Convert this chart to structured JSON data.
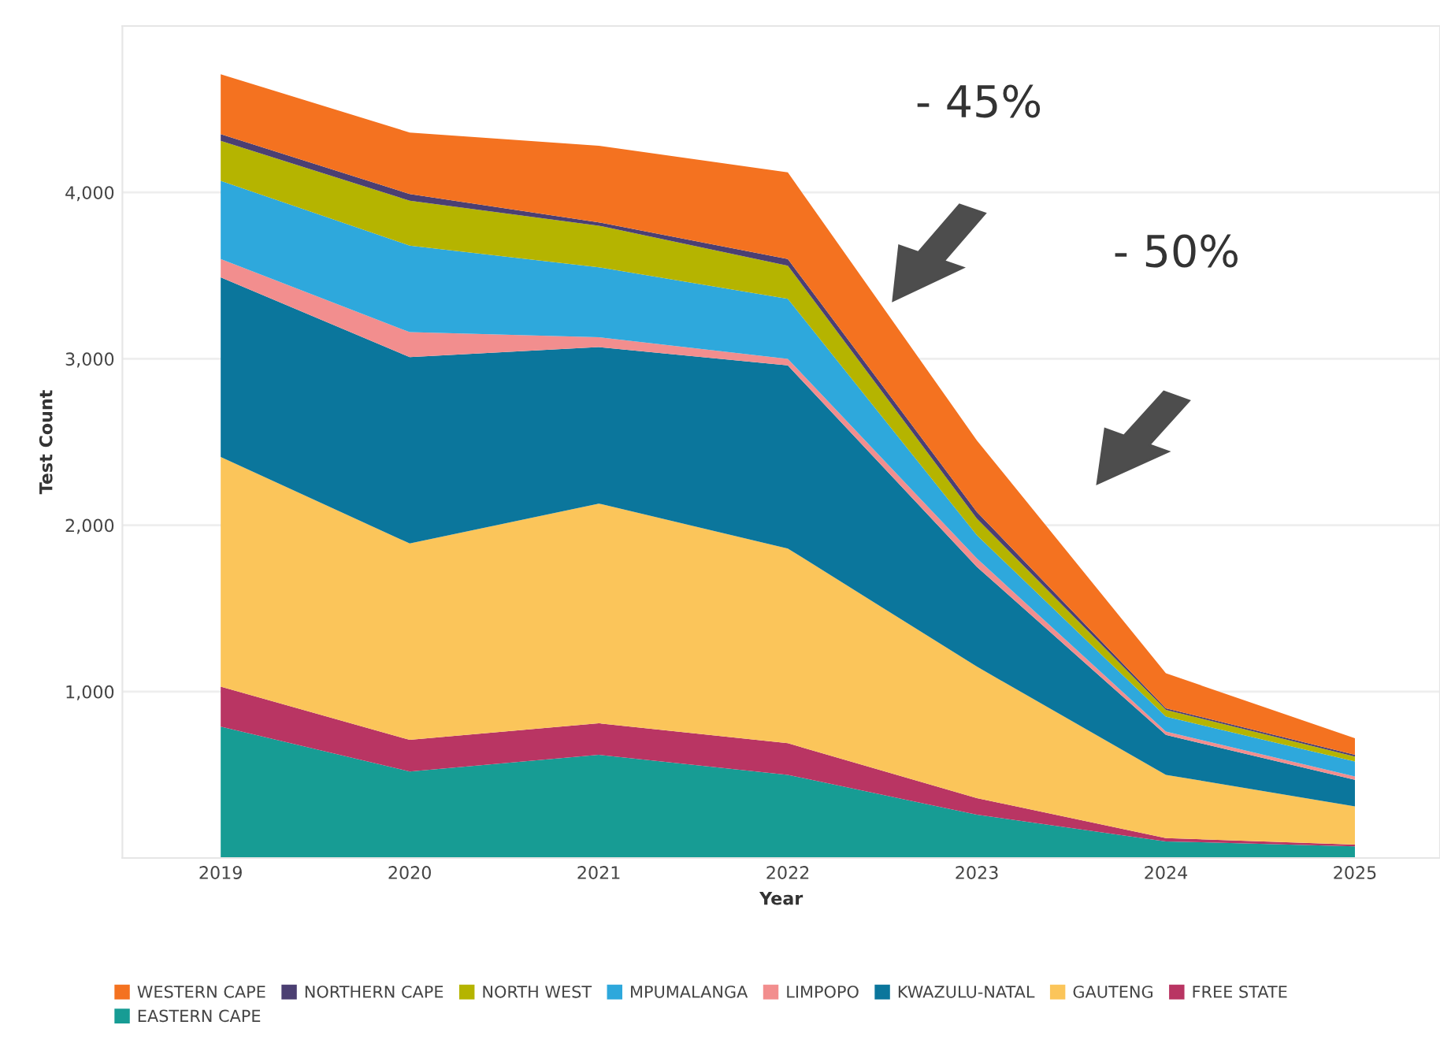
{
  "chart_data": {
    "type": "area",
    "stacked": true,
    "xlabel": "Year",
    "ylabel": "Test Count",
    "x": [
      2019,
      2020,
      2021,
      2022,
      2023,
      2024,
      2025
    ],
    "xlim": [
      2018.48,
      2025.45
    ],
    "xticks": [
      2019,
      2020,
      2021,
      2022,
      2023,
      2024,
      2025
    ],
    "ylim": [
      0,
      5000
    ],
    "yticks": [
      {
        "value": 1000,
        "label": "1,000"
      },
      {
        "value": 2000,
        "label": "2,000"
      },
      {
        "value": 3000,
        "label": "3,000"
      },
      {
        "value": 4000,
        "label": "4,000"
      }
    ],
    "grid": "y",
    "legend": "bottom",
    "annotations": [
      "- 45%",
      "- 50%"
    ],
    "series": [
      {
        "name": "EASTERN CAPE",
        "color": "#179c94",
        "values": [
          790,
          520,
          620,
          500,
          260,
          100,
          70
        ]
      },
      {
        "name": "FREE STATE",
        "color": "#b93563",
        "values": [
          240,
          190,
          190,
          190,
          100,
          20,
          10
        ]
      },
      {
        "name": "GAUTENG",
        "color": "#fbc55a",
        "values": [
          1380,
          1180,
          1320,
          1170,
          790,
          380,
          230
        ]
      },
      {
        "name": "KWAZULU-NATAL",
        "color": "#0b769c",
        "values": [
          1080,
          1120,
          940,
          1100,
          600,
          240,
          160
        ]
      },
      {
        "name": "LIMPOPO",
        "color": "#f28e8e",
        "values": [
          110,
          150,
          60,
          40,
          50,
          20,
          20
        ]
      },
      {
        "name": "MPUMALANGA",
        "color": "#2ea8dc",
        "values": [
          470,
          520,
          420,
          360,
          140,
          90,
          90
        ]
      },
      {
        "name": "NORTH WEST",
        "color": "#b5b400",
        "values": [
          240,
          270,
          250,
          200,
          100,
          40,
          30
        ]
      },
      {
        "name": "NORTHERN CAPE",
        "color": "#4b3f72",
        "values": [
          40,
          40,
          20,
          40,
          40,
          10,
          10
        ]
      },
      {
        "name": "WESTERN CAPE",
        "color": "#f47220",
        "values": [
          360,
          370,
          460,
          520,
          430,
          210,
          100
        ]
      }
    ]
  }
}
